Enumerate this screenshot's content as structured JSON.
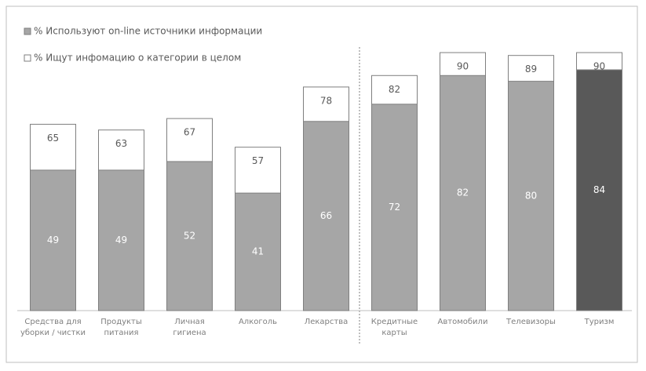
{
  "chart_data": {
    "type": "overlap_bar",
    "categories": [
      "Средства для уборки / чистки",
      "Продукты питания",
      "Личная гигиена",
      "Алкоголь",
      "Лекарства",
      "Кредитные карты",
      "Автомобили",
      "Телевизоры",
      "Туризм"
    ],
    "series": [
      {
        "name": "% Используют on-line источники информации",
        "color": "#a6a6a6",
        "colors": [
          "#a6a6a6",
          "#a6a6a6",
          "#a6a6a6",
          "#a6a6a6",
          "#a6a6a6",
          "#a6a6a6",
          "#a6a6a6",
          "#a6a6a6",
          "#595959"
        ],
        "values": [
          49,
          49,
          52,
          41,
          66,
          72,
          82,
          80,
          84
        ]
      },
      {
        "name": "% Ищут инфомацию о категории в целом",
        "color": "#ffffff",
        "values": [
          65,
          63,
          67,
          57,
          78,
          82,
          90,
          89,
          90
        ]
      }
    ],
    "ylim": [
      0,
      100
    ]
  }
}
